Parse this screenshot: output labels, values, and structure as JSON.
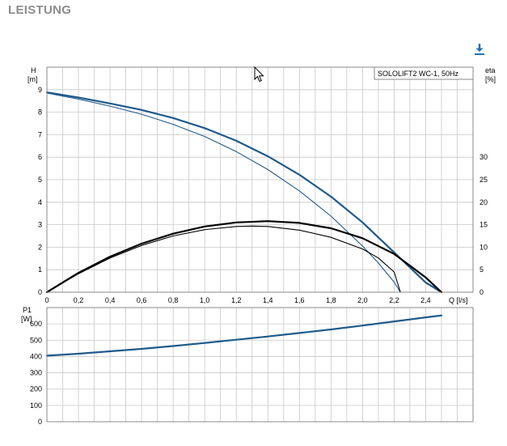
{
  "header": {
    "title": "LEISTUNG"
  },
  "icons": {
    "download": "download-icon"
  },
  "colors": {
    "blue": "#1f5a8c",
    "black": "#000000",
    "grid": "#c8c8c8"
  },
  "chart_data": [
    {
      "type": "line",
      "title": "",
      "legend_text": "SOLOLIFT2 WC-1, 50Hz",
      "legend_placement": "top-right",
      "grid": true,
      "xlabel": "Q [l/s]",
      "ylabel": "H\n[m]",
      "ylabel_lines": [
        "H",
        "[m]"
      ],
      "y2label_lines": [
        "eta",
        "[%]"
      ],
      "xlim": [
        0,
        2.7
      ],
      "ylim": [
        0,
        10
      ],
      "y2lim": [
        0,
        50
      ],
      "x_ticks": [
        "0",
        "0,2",
        "0,4",
        "0,6",
        "0,8",
        "1,0",
        "1,2",
        "1,4",
        "1,6",
        "1,8",
        "2,0",
        "2,2",
        "2,4"
      ],
      "y_ticks": [
        "0",
        "1",
        "2",
        "3",
        "4",
        "5",
        "6",
        "7",
        "8",
        "9"
      ],
      "y2_ticks": [
        "0",
        "5",
        "10",
        "15",
        "20",
        "25",
        "30"
      ],
      "series": [
        {
          "color": "#1f5a8c",
          "width": 2.2,
          "axis": "left",
          "x": [
            0,
            0.2,
            0.4,
            0.6,
            0.8,
            1.0,
            1.2,
            1.4,
            1.6,
            1.8,
            2.0,
            2.2,
            2.4,
            2.5
          ],
          "values": [
            8.88,
            8.65,
            8.39,
            8.1,
            7.74,
            7.29,
            6.73,
            6.04,
            5.22,
            4.25,
            3.1,
            1.77,
            0.43,
            0
          ]
        },
        {
          "color": "#1f5a8c",
          "width": 1.1,
          "axis": "left",
          "x": [
            0,
            0.2,
            0.4,
            0.6,
            0.8,
            1.0,
            1.2,
            1.4,
            1.6,
            1.8,
            2.0,
            2.1,
            2.2,
            2.24
          ],
          "values": [
            8.85,
            8.58,
            8.27,
            7.91,
            7.46,
            6.92,
            6.25,
            5.45,
            4.5,
            3.38,
            2.05,
            1.3,
            0.45,
            0
          ]
        },
        {
          "color": "#000000",
          "width": 2.2,
          "axis": "right",
          "x": [
            0,
            0.2,
            0.4,
            0.6,
            0.8,
            1.0,
            1.2,
            1.4,
            1.6,
            1.8,
            2.0,
            2.2,
            2.4,
            2.5
          ],
          "values": [
            0,
            4.3,
            7.9,
            10.8,
            13.0,
            14.6,
            15.5,
            15.8,
            15.4,
            14.2,
            12.0,
            8.5,
            3.3,
            0
          ]
        },
        {
          "color": "#000000",
          "width": 1.1,
          "axis": "right",
          "x": [
            0,
            0.2,
            0.4,
            0.6,
            0.8,
            1.0,
            1.2,
            1.3,
            1.4,
            1.6,
            1.8,
            2.0,
            2.1,
            2.2,
            2.24
          ],
          "values": [
            0,
            4.1,
            7.6,
            10.4,
            12.5,
            13.9,
            14.6,
            14.7,
            14.6,
            13.8,
            12.2,
            9.6,
            7.6,
            4.5,
            0
          ]
        }
      ]
    },
    {
      "type": "line",
      "title": "",
      "grid": true,
      "xlabel": "",
      "ylabel_lines": [
        "P1",
        "[W]"
      ],
      "xlim": [
        0,
        2.7
      ],
      "ylim": [
        0,
        700
      ],
      "y_ticks": [
        "0",
        "100",
        "200",
        "300",
        "400",
        "500",
        "600"
      ],
      "series": [
        {
          "color": "#1f5a8c",
          "width": 2.2,
          "x": [
            0,
            0.2,
            0.4,
            0.6,
            0.8,
            1.0,
            1.2,
            1.4,
            1.6,
            1.8,
            2.0,
            2.2,
            2.4,
            2.5
          ],
          "values": [
            405,
            417,
            432,
            447,
            464,
            483,
            503,
            523,
            544,
            566,
            590,
            615,
            640,
            652
          ]
        }
      ]
    }
  ]
}
